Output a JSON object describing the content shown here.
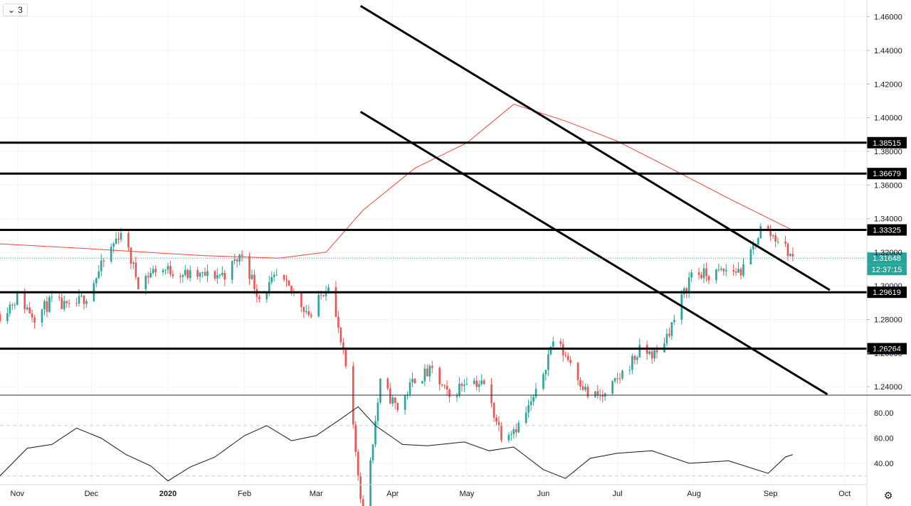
{
  "toolbar": {
    "interval_label": "3",
    "interval_chevron": "chevron-down-icon"
  },
  "settings_icon": "gear-icon",
  "colors": {
    "up": "#26a69a",
    "down": "#ef5350",
    "ma": "#f44336",
    "levels": "#000000",
    "rsi": "#131722",
    "grid": "#f0f3fa"
  },
  "price_axis": {
    "ticks": [
      "1.46000",
      "1.44000",
      "1.42000",
      "1.40000",
      "1.38000",
      "1.36000",
      "1.34000",
      "1.32000",
      "1.30000",
      "1.28000",
      "1.26000",
      "1.24000"
    ]
  },
  "time_axis": {
    "labels": [
      "Nov",
      "Dec",
      "2020",
      "Feb",
      "Mar",
      "Apr",
      "May",
      "Jun",
      "Jul",
      "Aug",
      "Sep",
      "Oct"
    ]
  },
  "current": {
    "price": "1.31648",
    "countdown": "12:37:15"
  },
  "levels": [
    "1.38515",
    "1.36679",
    "1.33325",
    "1.29619",
    "1.26264"
  ],
  "rsi_axis": {
    "ticks": [
      "80.00",
      "60.00",
      "40.00"
    ],
    "bands": [
      70,
      30
    ]
  },
  "chart_data": [
    {
      "type": "candlestick",
      "title": "",
      "y_range": [
        1.235,
        1.47
      ],
      "x_range": [
        "2019-10-25",
        "2020-10-10"
      ],
      "closes": [
        [
          "2019-10-25",
          1.283
        ],
        [
          "2019-11-01",
          1.293
        ],
        [
          "2019-11-08",
          1.282
        ],
        [
          "2019-11-15",
          1.291
        ],
        [
          "2019-11-22",
          1.286
        ],
        [
          "2019-11-29",
          1.294
        ],
        [
          "2019-12-06",
          1.314
        ],
        [
          "2019-12-13",
          1.333
        ],
        [
          "2019-12-20",
          1.302
        ],
        [
          "2019-12-27",
          1.31
        ],
        [
          "2020-01-03",
          1.309
        ],
        [
          "2020-01-10",
          1.306
        ],
        [
          "2020-01-17",
          1.306
        ],
        [
          "2020-01-24",
          1.307
        ],
        [
          "2020-01-31",
          1.319
        ],
        [
          "2020-02-07",
          1.293
        ],
        [
          "2020-02-14",
          1.305
        ],
        [
          "2020-02-21",
          1.295
        ],
        [
          "2020-02-28",
          1.282
        ],
        [
          "2020-03-06",
          1.303
        ],
        [
          "2020-03-13",
          1.251
        ],
        [
          "2020-03-20",
          1.164
        ],
        [
          "2020-03-27",
          1.242
        ],
        [
          "2020-04-03",
          1.227
        ],
        [
          "2020-04-10",
          1.245
        ],
        [
          "2020-04-17",
          1.249
        ],
        [
          "2020-04-24",
          1.233
        ],
        [
          "2020-05-01",
          1.245
        ],
        [
          "2020-05-08",
          1.241
        ],
        [
          "2020-05-15",
          1.212
        ],
        [
          "2020-05-22",
          1.217
        ],
        [
          "2020-05-29",
          1.235
        ],
        [
          "2020-06-05",
          1.268
        ],
        [
          "2020-06-12",
          1.255
        ],
        [
          "2020-06-19",
          1.235
        ],
        [
          "2020-06-26",
          1.234
        ],
        [
          "2020-07-03",
          1.248
        ],
        [
          "2020-07-10",
          1.261
        ],
        [
          "2020-07-17",
          1.259
        ],
        [
          "2020-07-24",
          1.28
        ],
        [
          "2020-07-31",
          1.308
        ],
        [
          "2020-08-07",
          1.306
        ],
        [
          "2020-08-14",
          1.309
        ],
        [
          "2020-08-21",
          1.309
        ],
        [
          "2020-08-28",
          1.334
        ],
        [
          "2020-09-04",
          1.328
        ],
        [
          "2020-09-10",
          1.3165
        ]
      ],
      "price_levels": [
        1.38515,
        1.36679,
        1.33325,
        1.29619,
        1.26264
      ],
      "descending_channel": {
        "upper": [
          [
            "2020-03-19",
            1.4665
          ],
          [
            "2020-09-25",
            1.2975
          ]
        ],
        "lower": [
          [
            "2020-03-19",
            1.4035
          ],
          [
            "2020-09-24",
            1.2355
          ]
        ]
      },
      "moving_average": [
        [
          "2019-10-25",
          1.325
        ],
        [
          "2019-12-01",
          1.322
        ],
        [
          "2020-01-15",
          1.318
        ],
        [
          "2020-02-15",
          1.3165
        ],
        [
          "2020-03-05",
          1.32
        ],
        [
          "2020-03-20",
          1.345
        ],
        [
          "2020-04-10",
          1.37
        ],
        [
          "2020-05-01",
          1.385
        ],
        [
          "2020-05-20",
          1.408
        ],
        [
          "2020-06-10",
          1.398
        ],
        [
          "2020-07-01",
          1.386
        ],
        [
          "2020-07-25",
          1.368
        ],
        [
          "2020-08-15",
          1.352
        ],
        [
          "2020-09-10",
          1.333
        ]
      ]
    },
    {
      "type": "line",
      "title": "",
      "y_range": [
        23,
        92
      ],
      "ticks": [
        80,
        60,
        40
      ],
      "points": [
        [
          "2019-10-25",
          30
        ],
        [
          "2019-11-05",
          52
        ],
        [
          "2019-11-15",
          55
        ],
        [
          "2019-11-25",
          68
        ],
        [
          "2019-12-05",
          60
        ],
        [
          "2019-12-15",
          47
        ],
        [
          "2019-12-25",
          38
        ],
        [
          "2020-01-01",
          26
        ],
        [
          "2020-01-10",
          37
        ],
        [
          "2020-01-20",
          45
        ],
        [
          "2020-02-01",
          62
        ],
        [
          "2020-02-10",
          70
        ],
        [
          "2020-02-20",
          58
        ],
        [
          "2020-03-01",
          62
        ],
        [
          "2020-03-10",
          74
        ],
        [
          "2020-03-18",
          85
        ],
        [
          "2020-03-25",
          70
        ],
        [
          "2020-04-05",
          55
        ],
        [
          "2020-04-15",
          54
        ],
        [
          "2020-04-30",
          57
        ],
        [
          "2020-05-10",
          50
        ],
        [
          "2020-05-20",
          53
        ],
        [
          "2020-06-01",
          35
        ],
        [
          "2020-06-10",
          28
        ],
        [
          "2020-06-20",
          44
        ],
        [
          "2020-07-01",
          48
        ],
        [
          "2020-07-15",
          50
        ],
        [
          "2020-07-30",
          40
        ],
        [
          "2020-08-15",
          42
        ],
        [
          "2020-08-31",
          32
        ],
        [
          "2020-09-07",
          45
        ],
        [
          "2020-09-10",
          47
        ]
      ]
    }
  ]
}
